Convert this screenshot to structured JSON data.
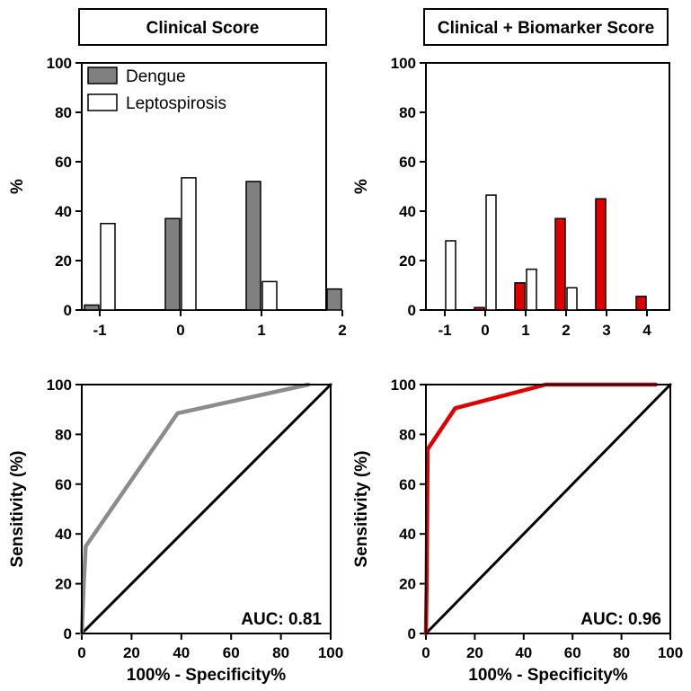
{
  "chart_data": [
    {
      "type": "bar",
      "panel_title": "Clinical Score",
      "categories": [
        "-1",
        "0",
        "1",
        "2"
      ],
      "series": [
        {
          "name": "Dengue",
          "color": "#808080",
          "values": [
            2,
            37,
            52,
            8.5
          ]
        },
        {
          "name": "Leptospirosis",
          "color": "#ffffff",
          "values": [
            35,
            53.5,
            11.5,
            0
          ]
        }
      ],
      "ylabel": "%",
      "ylim": [
        0,
        100
      ],
      "yticks": [
        0,
        20,
        40,
        60,
        80,
        100
      ],
      "legend": "top-left"
    },
    {
      "type": "bar",
      "panel_title": "Clinical + Biomarker Score",
      "categories": [
        "-1",
        "0",
        "1",
        "2",
        "3",
        "4"
      ],
      "series": [
        {
          "color": "#e00000",
          "values": [
            0,
            1,
            11,
            37,
            45,
            5.5
          ]
        },
        {
          "color": "#ffffff",
          "values": [
            28,
            46.5,
            16.5,
            9,
            0,
            0
          ]
        }
      ],
      "ylabel": "%",
      "ylim": [
        0,
        100
      ],
      "yticks": [
        0,
        20,
        40,
        60,
        80,
        100
      ]
    },
    {
      "type": "line",
      "series": [
        {
          "color": "#8c8c8c",
          "x": [
            0,
            0.8,
            1.6,
            38.5,
            91
          ],
          "y": [
            0,
            20,
            35,
            88.5,
            100
          ]
        },
        {
          "color": "#000000",
          "x": [
            0,
            100
          ],
          "y": [
            0,
            100
          ]
        }
      ],
      "xlabel": "100% - Specificity%",
      "ylabel": "Sensitivity (%)",
      "xlim": [
        0,
        100
      ],
      "ylim": [
        0,
        100
      ],
      "xticks": [
        0,
        20,
        40,
        60,
        80,
        100
      ],
      "yticks": [
        0,
        20,
        40,
        60,
        80,
        100
      ],
      "annotation": "AUC: 0.81"
    },
    {
      "type": "line",
      "series": [
        {
          "color": "#e00000",
          "x": [
            0,
            0.3,
            0.7,
            12,
            49,
            94
          ],
          "y": [
            0,
            20,
            74,
            90.5,
            100,
            100
          ]
        },
        {
          "color": "#000000",
          "x": [
            0,
            100
          ],
          "y": [
            0,
            100
          ]
        }
      ],
      "xlabel": "100% - Specificity%",
      "ylabel": "Sensitivity (%)",
      "xlim": [
        0,
        100
      ],
      "ylim": [
        0,
        100
      ],
      "xticks": [
        0,
        20,
        40,
        60,
        80,
        100
      ],
      "yticks": [
        0,
        20,
        40,
        60,
        80,
        100
      ],
      "annotation": "AUC: 0.96"
    }
  ]
}
